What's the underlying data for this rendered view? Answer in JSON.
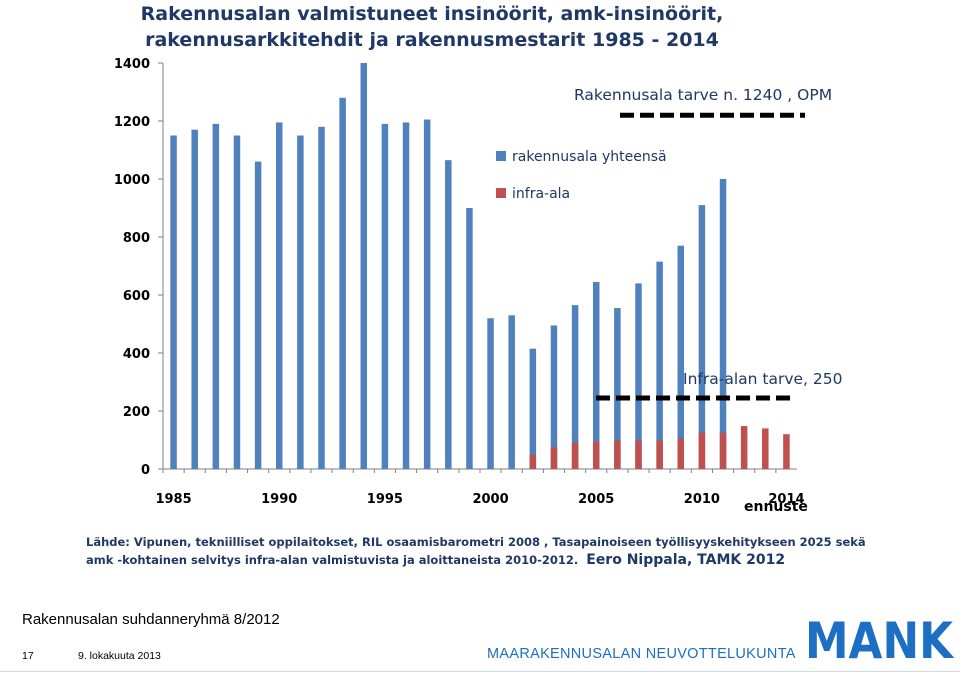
{
  "chart_data": {
    "type": "bar",
    "title": [
      "Rakennusalan valmistuneet insinöörit, amk-insinöörit,",
      "rakennusarkkitehdit  ja rakennusmestarit 1985 - 2014"
    ],
    "x": [
      1985,
      1986,
      1987,
      1988,
      1989,
      1990,
      1991,
      1992,
      1993,
      1994,
      1995,
      1996,
      1997,
      1998,
      1999,
      2000,
      2001,
      2002,
      2003,
      2004,
      2005,
      2006,
      2007,
      2008,
      2009,
      2010,
      2011,
      2012,
      2013,
      2014
    ],
    "series": [
      {
        "name": "rakennusala yhteensä",
        "color": "#4f81bd",
        "values": [
          1150,
          1170,
          1190,
          1150,
          1060,
          1195,
          1150,
          1180,
          1280,
          1400,
          1190,
          1195,
          1205,
          1065,
          900,
          520,
          530,
          415,
          495,
          565,
          645,
          555,
          640,
          715,
          770,
          910,
          1000,
          null,
          null,
          null
        ]
      },
      {
        "name": "infra-ala",
        "color": "#c0504d",
        "values": [
          null,
          null,
          null,
          null,
          null,
          null,
          null,
          null,
          null,
          null,
          null,
          null,
          null,
          null,
          null,
          null,
          null,
          50,
          75,
          90,
          95,
          98,
          98,
          98,
          105,
          125,
          125,
          148,
          140,
          120
        ]
      }
    ],
    "xticks": [
      1985,
      1990,
      1995,
      2000,
      2005,
      2010,
      2014
    ],
    "ylim": [
      0,
      1400
    ],
    "yticks": [
      0,
      200,
      400,
      600,
      800,
      1000,
      1200,
      1400
    ],
    "grid": "none",
    "legend_position": "center-right",
    "annotations": [
      {
        "text": "Rakennusala tarve n. 1240 , OPM",
        "y": 1220
      },
      {
        "text": "Infra-alan tarve, 250",
        "y": 245
      }
    ],
    "forecast_label": "ennuste"
  },
  "source": {
    "line1": "Lähde: Vipunen,  tekniilliset oppilaitokset, RIL osaamisbarometri 2008 , Tasapainoiseen työllisyyskehitykseen 2025  sekä",
    "line2": "amk -kohtainen selvitys infra-alan valmistuvista ja aloittaneista 2010-2012.",
    "author": "Eero Nippala, TAMK 2012"
  },
  "footer": {
    "title": "Rakennusalan suhdanneryhmä 8/2012",
    "page": "17",
    "date": "9. lokakuuta 2013",
    "org": "MAARAKENNUSALAN NEUVOTTELUKUNTA",
    "logo_text": "MANK"
  }
}
